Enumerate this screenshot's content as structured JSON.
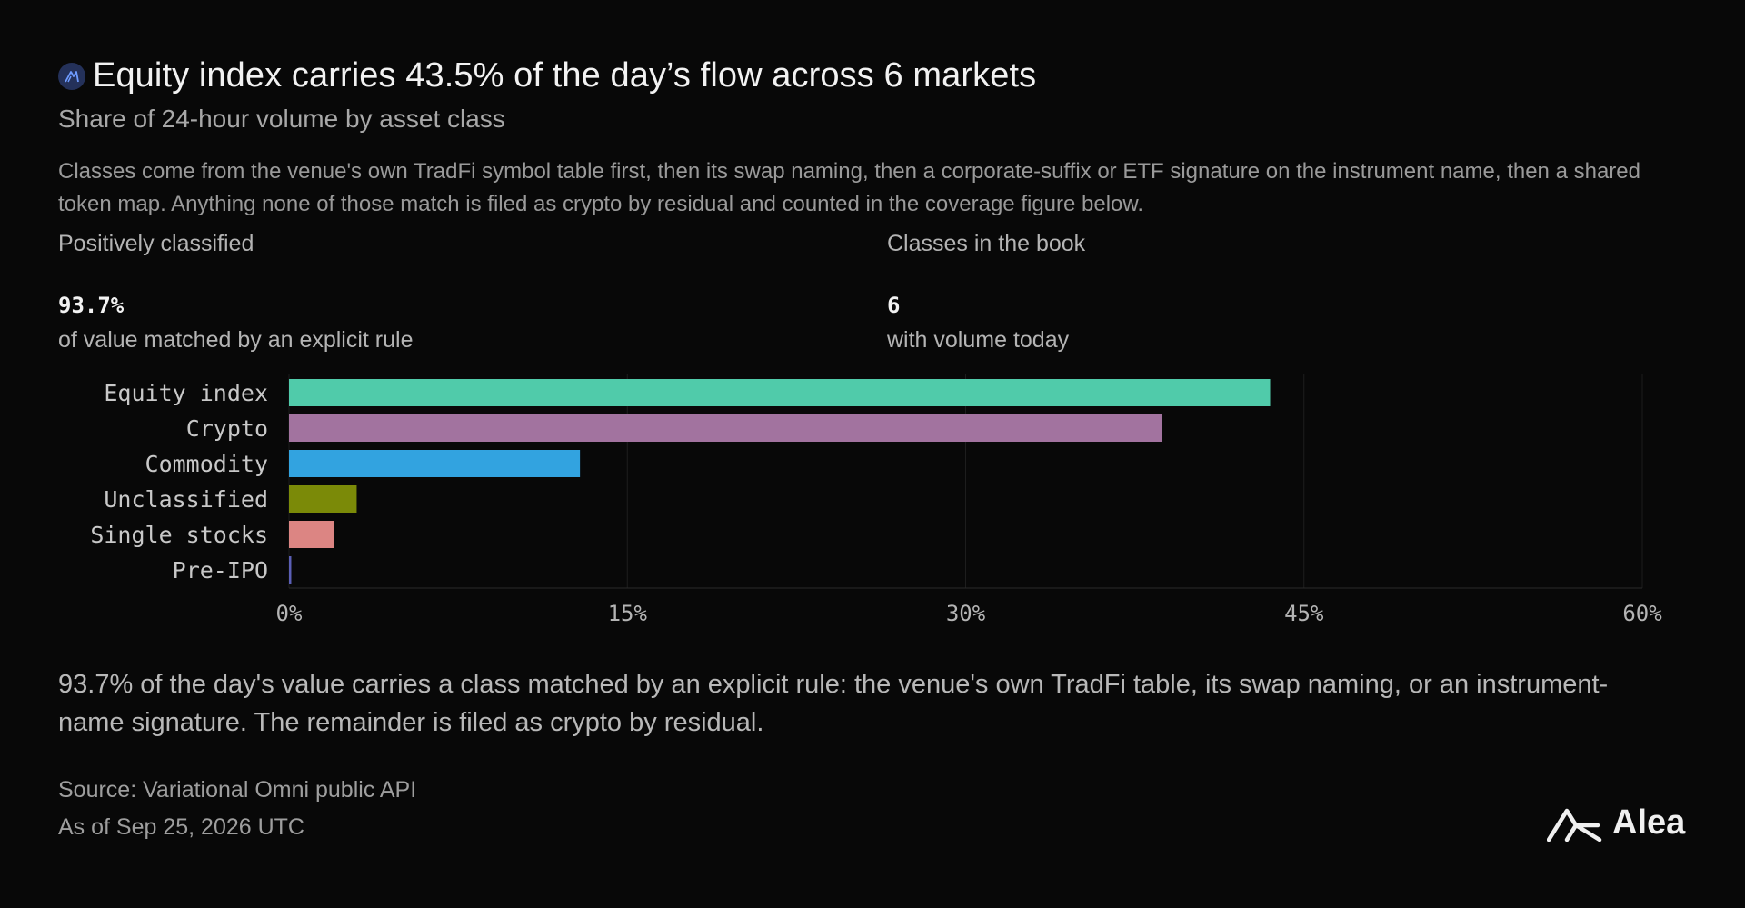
{
  "header": {
    "title": "Equity index carries 43.5% of the day’s flow across 6 markets",
    "subtitle": "Share of 24-hour volume by asset class",
    "description": "Classes come from the venue's own TradFi symbol table first, then its swap naming, then a corporate-suffix or ETF signature on the instrument name, then a shared token map. Anything none of those match is filed as crypto by residual and counted in the coverage figure below."
  },
  "stats": [
    {
      "label": "Positively classified",
      "value": "93.7%",
      "caption": "of value matched by an explicit rule"
    },
    {
      "label": "Classes in the book",
      "value": "6",
      "caption": "with volume today"
    }
  ],
  "chart_data": {
    "type": "bar",
    "orientation": "horizontal",
    "categories": [
      "Equity index",
      "Crypto",
      "Commodity",
      "Unclassified",
      "Single stocks",
      "Pre-IPO"
    ],
    "values": [
      43.5,
      38.7,
      12.9,
      3.0,
      2.0,
      0.1
    ],
    "colors": [
      "#50cbaa",
      "#a2739f",
      "#32a3e0",
      "#7b8a08",
      "#dc8583",
      "#5b5fb6"
    ],
    "xlim": [
      0,
      60
    ],
    "xticks": [
      0,
      15,
      30,
      45,
      60
    ],
    "xtick_labels": [
      "0%",
      "15%",
      "30%",
      "45%",
      "60%"
    ],
    "grid": true
  },
  "footer": {
    "note": "93.7% of the day's value carries a class matched by an explicit rule: the venue's own TradFi table, its swap naming, or an instrument-name signature. The remainder is filed as crypto by residual.",
    "source": "Source: Variational Omni public API",
    "as_of": "As of Sep 25, 2026 UTC",
    "brand": "Alea"
  }
}
